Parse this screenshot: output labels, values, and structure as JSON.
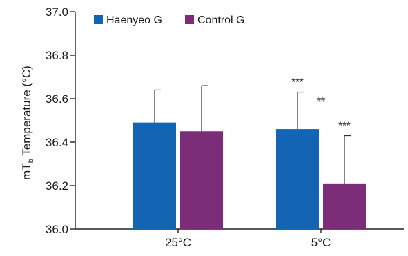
{
  "chart_data": {
    "type": "bar",
    "categories": [
      "25°C",
      "5°C"
    ],
    "series": [
      {
        "name": "Haenyeo G",
        "color": "#1464b4",
        "values": [
          36.49,
          36.46
        ],
        "error": [
          0.15,
          0.17
        ],
        "annotations": [
          "",
          "***"
        ]
      },
      {
        "name": "Control G",
        "color": "#7b2d78",
        "values": [
          36.45,
          36.21
        ],
        "error": [
          0.21,
          0.22
        ],
        "annotations": [
          "",
          "***"
        ]
      }
    ],
    "group_annotations": [
      "",
      "##"
    ],
    "ylim": [
      36.0,
      37.0
    ],
    "yticks": [
      "36.0",
      "36.2",
      "36.4",
      "36.6",
      "36.8",
      "37.0"
    ],
    "ylabel": {
      "prefix": "mT",
      "subscript": "b",
      "suffix": " Temperature (°C)"
    },
    "legend_position": "top-left",
    "grid": false
  }
}
